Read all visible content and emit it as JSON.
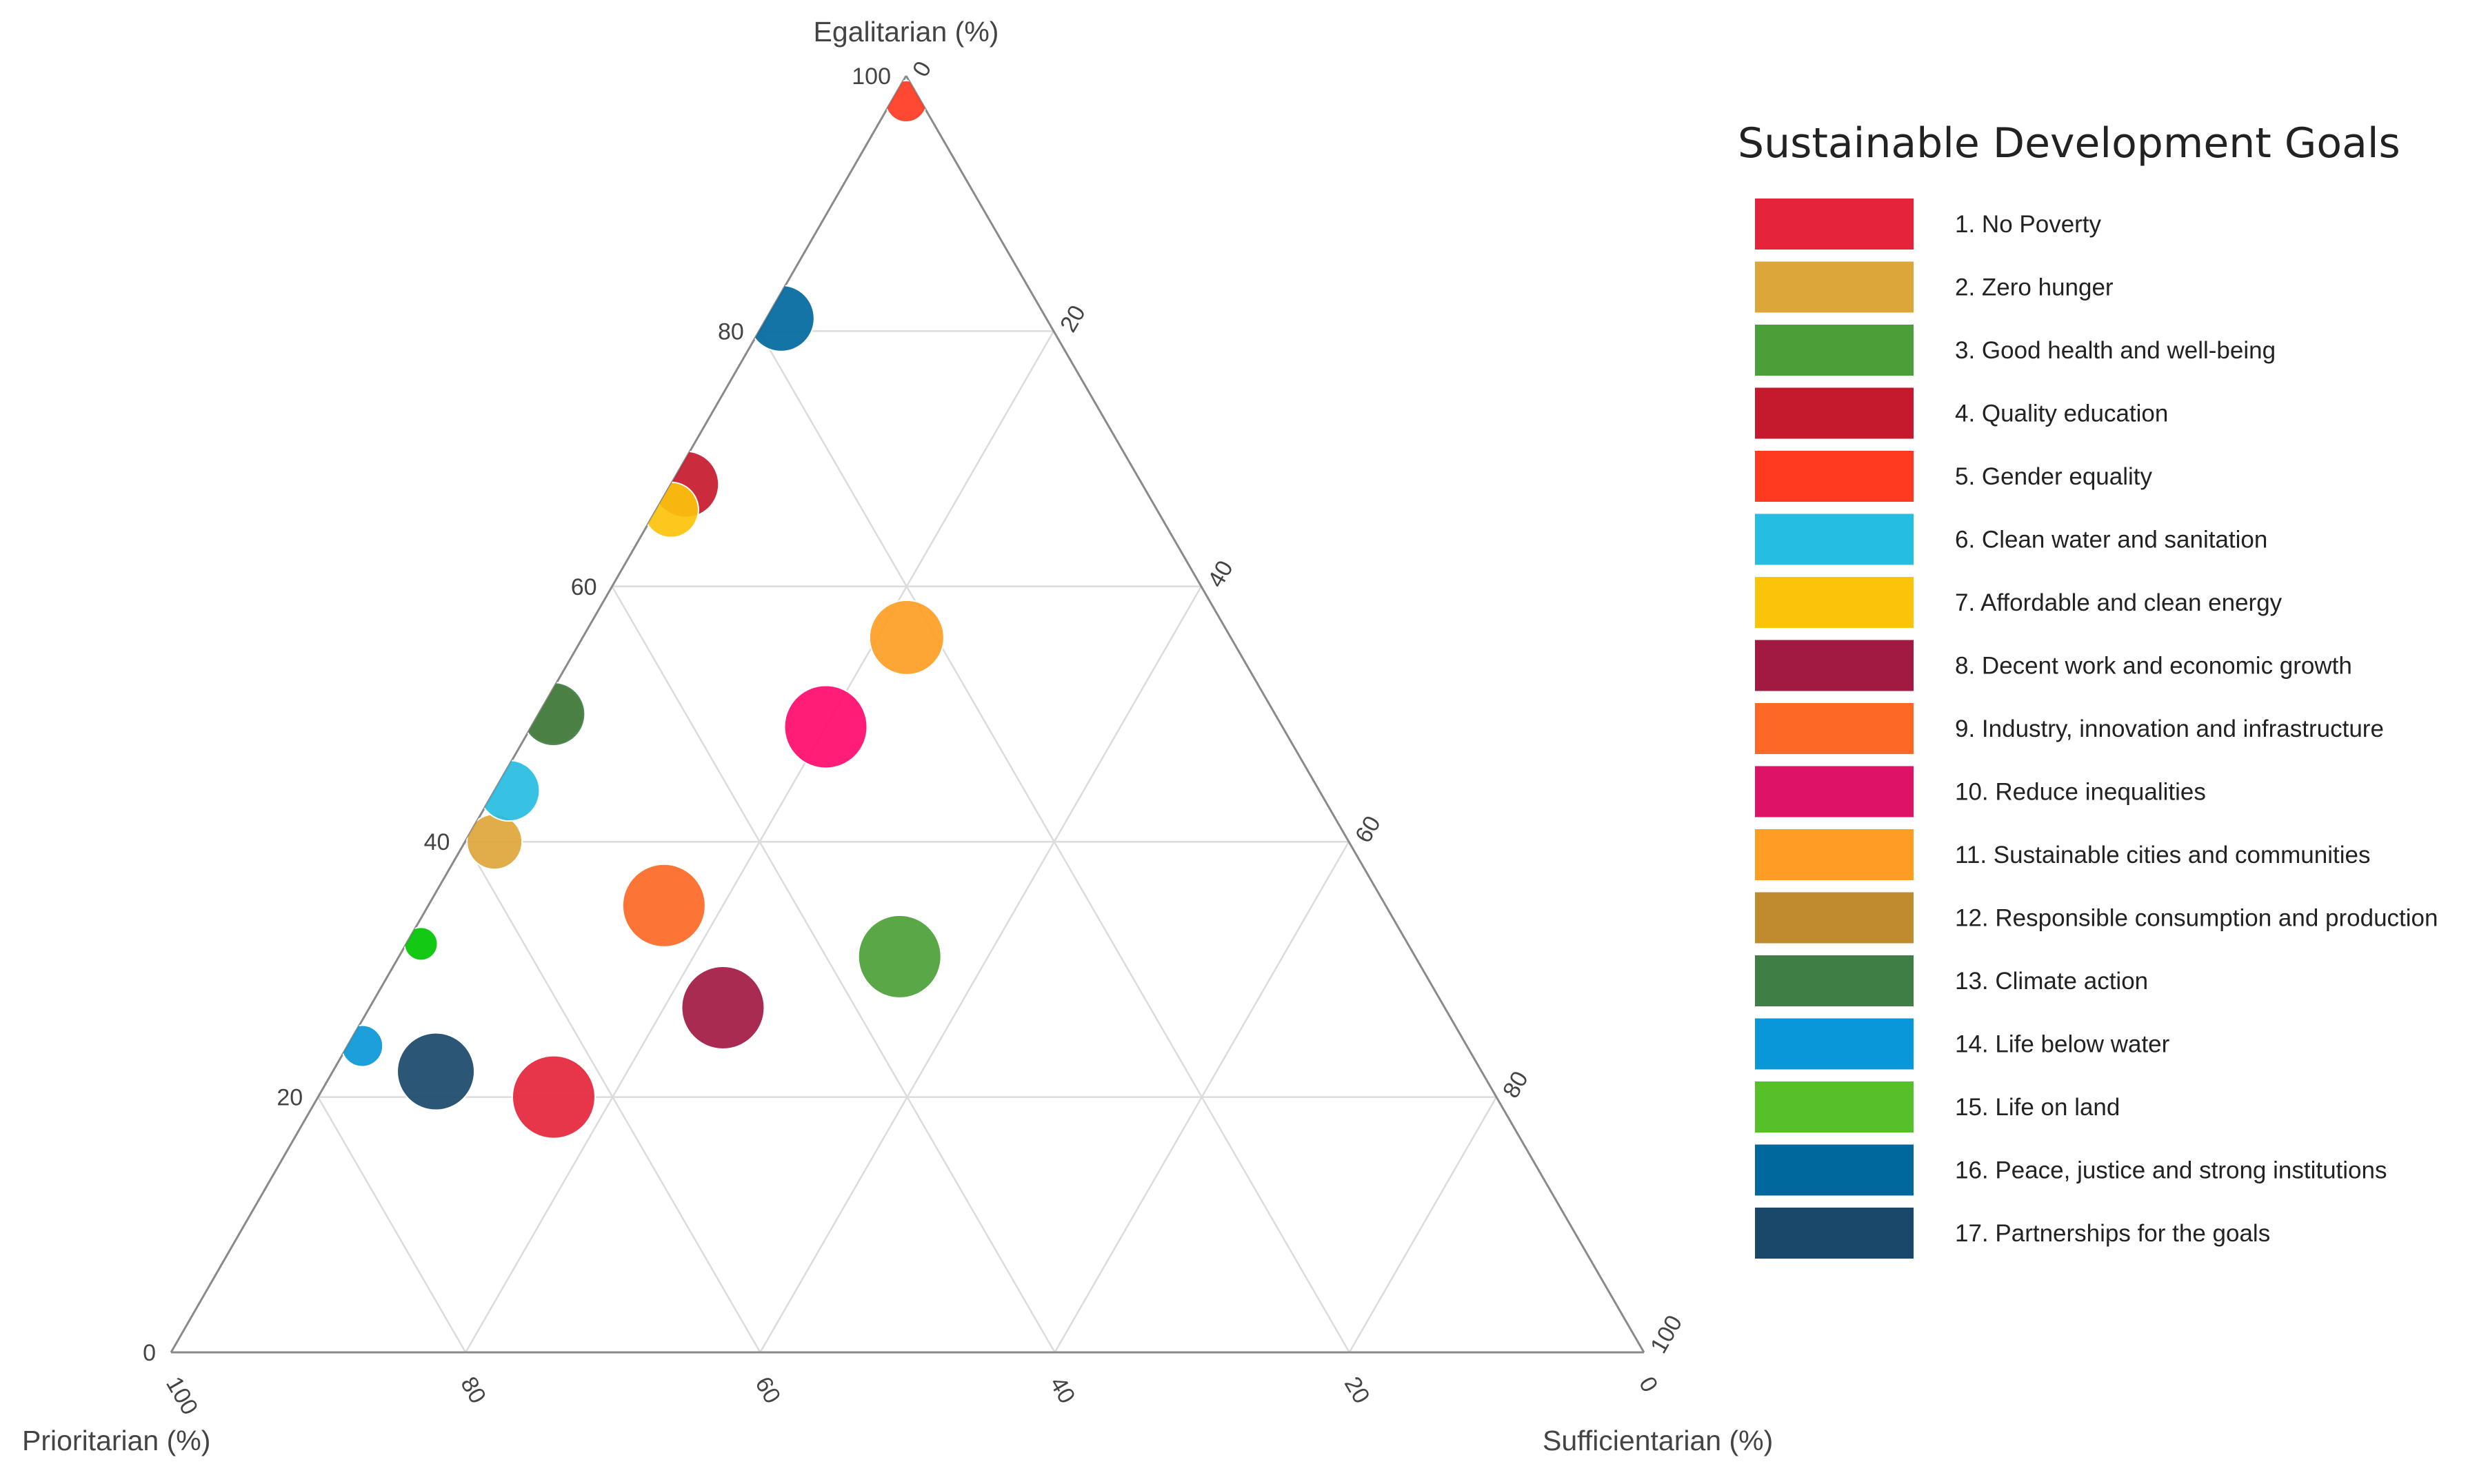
{
  "chart_data": {
    "type": "ternary-bubble",
    "axes": {
      "top": "Egalitarian (%)",
      "left": "Prioritarian (%)",
      "right": "Sufficientarian (%)"
    },
    "ticks": {
      "egalitarian": [
        "0",
        "20",
        "40",
        "60",
        "80",
        "100"
      ],
      "sufficientarian": [
        "0",
        "20",
        "40",
        "60",
        "80",
        "100"
      ],
      "prioritarian": [
        "100",
        "80",
        "60",
        "40",
        "20",
        "0"
      ]
    },
    "grid": true,
    "legend_title": "Sustainable Development Goals",
    "legend_position": "right",
    "legend": [
      {
        "label": "1.  No Poverty",
        "color": "#E5243B"
      },
      {
        "label": "2.  Zero hunger",
        "color": "#DDA63A"
      },
      {
        "label": "3.  Good health and well-being",
        "color": "#4C9F38"
      },
      {
        "label": "4.  Quality education",
        "color": "#C5192D"
      },
      {
        "label": "5.  Gender equality",
        "color": "#FF3A21"
      },
      {
        "label": "6.  Clean water and sanitation",
        "color": "#26BDE2"
      },
      {
        "label": "7.  Affordable and clean energy",
        "color": "#FCC30B"
      },
      {
        "label": "8.  Decent work and economic growth",
        "color": "#A21942"
      },
      {
        "label": "9.  Industry, innovation and infrastructure",
        "color": "#FD6925"
      },
      {
        "label": "10. Reduce inequalities",
        "color": "#DD1367"
      },
      {
        "label": "11. Sustainable cities and communities",
        "color": "#FD9D24"
      },
      {
        "label": "12. Responsible consumption and production",
        "color": "#BF8B2E"
      },
      {
        "label": "13. Climate action",
        "color": "#3F7E44"
      },
      {
        "label": "14. Life below water",
        "color": "#0A97D9"
      },
      {
        "label": "15. Life on land",
        "color": "#56C02B"
      },
      {
        "label": "16. Peace, justice and strong institutions",
        "color": "#00689D"
      },
      {
        "label": "17. Partnerships for the goals",
        "color": "#19486A"
      }
    ],
    "points": [
      {
        "goal": 1,
        "egalitarian": 20,
        "sufficientarian": 16,
        "prioritarian": 64,
        "size": 3.0,
        "color": "#E5243B"
      },
      {
        "goal": 2,
        "egalitarian": 40,
        "sufficientarian": 2,
        "prioritarian": 58,
        "size": 2.0,
        "color": "#DDA63A"
      },
      {
        "goal": 3,
        "egalitarian": 31,
        "sufficientarian": 34,
        "prioritarian": 35,
        "size": 3.0,
        "color": "#4C9F38"
      },
      {
        "goal": 4,
        "egalitarian": 68,
        "sufficientarian": 1,
        "prioritarian": 31,
        "size": 2.4,
        "color": "#C5192D"
      },
      {
        "goal": 5,
        "egalitarian": 98,
        "sufficientarian": 1,
        "prioritarian": 1,
        "size": 1.5,
        "color": "#FF3A21"
      },
      {
        "goal": 6,
        "egalitarian": 44,
        "sufficientarian": 1,
        "prioritarian": 55,
        "size": 2.2,
        "color": "#26BDE2"
      },
      {
        "goal": 7,
        "egalitarian": 66,
        "sufficientarian": 1,
        "prioritarian": 33,
        "size": 2.0,
        "color": "#FCC30B"
      },
      {
        "goal": 8,
        "egalitarian": 27,
        "sufficientarian": 24,
        "prioritarian": 49,
        "size": 3.0,
        "color": "#A21942"
      },
      {
        "goal": 9,
        "egalitarian": 35,
        "sufficientarian": 16,
        "prioritarian": 49,
        "size": 3.0,
        "color": "#FD6925"
      },
      {
        "goal": 10,
        "egalitarian": 49,
        "sufficientarian": 20,
        "prioritarian": 31,
        "size": 3.0,
        "color": "#FF0A6C"
      },
      {
        "goal": 11,
        "egalitarian": 56,
        "sufficientarian": 22,
        "prioritarian": 22,
        "size": 2.7,
        "color": "#FD9D24"
      },
      {
        "goal": 12,
        "egalitarian": 50,
        "sufficientarian": 1,
        "prioritarian": 49,
        "size": 2.2,
        "color": "#BF8B2E"
      },
      {
        "goal": 13,
        "egalitarian": 50,
        "sufficientarian": 1,
        "prioritarian": 49,
        "size": 2.3,
        "color": "#3F7E44"
      },
      {
        "goal": 14,
        "egalitarian": 24,
        "sufficientarian": 1,
        "prioritarian": 75,
        "size": 1.5,
        "color": "#0A97D9"
      },
      {
        "goal": 15,
        "egalitarian": 32,
        "sufficientarian": 1,
        "prioritarian": 67,
        "size": 1.2,
        "color": "#00C400"
      },
      {
        "goal": 16,
        "egalitarian": 81,
        "sufficientarian": 1,
        "prioritarian": 18,
        "size": 2.4,
        "color": "#00689D"
      },
      {
        "goal": 17,
        "egalitarian": 22,
        "sufficientarian": 7,
        "prioritarian": 71,
        "size": 2.8,
        "color": "#19486A"
      }
    ]
  }
}
